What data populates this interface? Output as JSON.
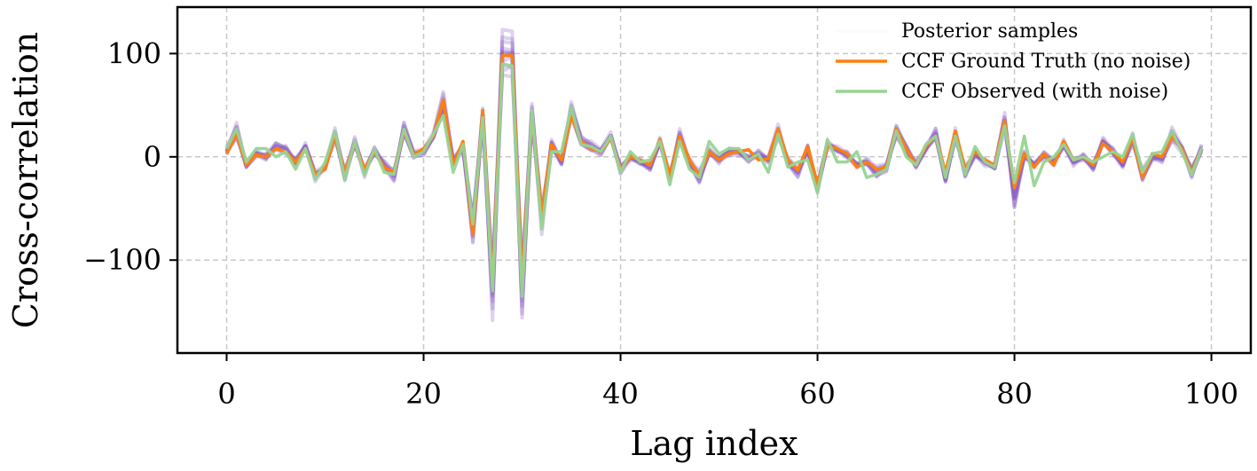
{
  "chart_data": {
    "type": "line",
    "title": "",
    "xlabel": "Lag index",
    "ylabel": "Cross-correlation",
    "xlim": [
      -5,
      104
    ],
    "ylim": [
      -190,
      145
    ],
    "xticks": [
      0,
      20,
      40,
      60,
      80,
      100
    ],
    "xtick_labels": [
      "0",
      "20",
      "40",
      "60",
      "80",
      "100"
    ],
    "yticks": [
      100,
      0,
      -100
    ],
    "ytick_labels": [
      "100",
      "0",
      "−100"
    ],
    "grid": true,
    "legend_position": "top-right",
    "legend": [
      {
        "label": "Posterior samples",
        "color": "#8a5cc4",
        "kind": "samples"
      },
      {
        "label": "CCF Ground Truth (no noise)",
        "color": "#ff7f0e",
        "kind": "line"
      },
      {
        "label": "CCF Observed (with noise)",
        "color": "#98d493",
        "kind": "line"
      }
    ],
    "x_start": 0,
    "series": [
      {
        "name": "Posterior samples",
        "color": "#8a5cc4",
        "values": [
          5,
          25,
          -8,
          3,
          0,
          10,
          7,
          -5,
          10,
          -18,
          -10,
          22,
          -18,
          14,
          -14,
          6,
          -8,
          -18,
          27,
          2,
          5,
          20,
          52,
          -5,
          10,
          -70,
          40,
          -130,
          100,
          100,
          -130,
          42,
          -60,
          12,
          -5,
          45,
          15,
          10,
          5,
          20,
          -12,
          0,
          -5,
          -10,
          15,
          -20,
          20,
          -5,
          -20,
          5,
          -3,
          5,
          5,
          -2,
          3,
          -3,
          25,
          -5,
          -15,
          8,
          -30,
          12,
          7,
          2,
          -8,
          -5,
          -15,
          -10,
          25,
          8,
          -8,
          8,
          22,
          -22,
          22,
          -15,
          3,
          -5,
          -10,
          35,
          -40,
          2,
          -8,
          2,
          -5,
          12,
          -5,
          0,
          -10,
          15,
          5,
          -8,
          18,
          -18,
          0,
          -2,
          22,
          8,
          -15,
          8
        ]
      },
      {
        "name": "CCF Ground Truth (no noise)",
        "color": "#ff7f0e",
        "values": [
          3,
          22,
          -8,
          2,
          0,
          8,
          5,
          -5,
          8,
          -17,
          -12,
          20,
          -15,
          13,
          -12,
          5,
          -10,
          -15,
          25,
          2,
          8,
          20,
          55,
          -8,
          15,
          -75,
          45,
          -125,
          98,
          98,
          -120,
          40,
          -55,
          12,
          -3,
          40,
          15,
          8,
          5,
          18,
          -12,
          0,
          -3,
          -8,
          17,
          -18,
          20,
          -3,
          -18,
          5,
          -3,
          3,
          5,
          7,
          -3,
          -2,
          27,
          -3,
          -13,
          10,
          -27,
          10,
          8,
          3,
          -10,
          -5,
          -12,
          -10,
          27,
          8,
          -8,
          10,
          20,
          -15,
          25,
          -12,
          5,
          -3,
          -8,
          35,
          -30,
          3,
          -10,
          3,
          -8,
          15,
          -3,
          0,
          -8,
          13,
          5,
          -5,
          18,
          -20,
          3,
          0,
          20,
          8,
          -15,
          8
        ]
      },
      {
        "name": "CCF Observed (with noise)",
        "color": "#98d493",
        "values": [
          8,
          27,
          -5,
          8,
          8,
          0,
          5,
          -12,
          8,
          -22,
          -5,
          25,
          -22,
          15,
          -18,
          8,
          -15,
          -17,
          27,
          0,
          5,
          22,
          40,
          -15,
          12,
          -65,
          38,
          -130,
          90,
          88,
          -135,
          45,
          -70,
          5,
          5,
          48,
          12,
          10,
          5,
          20,
          -15,
          5,
          -5,
          -3,
          15,
          -27,
          15,
          -12,
          -20,
          15,
          3,
          8,
          8,
          -3,
          3,
          -15,
          22,
          -10,
          -5,
          -3,
          -35,
          17,
          -5,
          -5,
          5,
          -20,
          -17,
          -12,
          25,
          0,
          -8,
          12,
          20,
          -20,
          20,
          -17,
          10,
          -5,
          -10,
          30,
          -25,
          20,
          -28,
          -5,
          0,
          12,
          -3,
          0,
          -5,
          0,
          5,
          0,
          22,
          -15,
          3,
          5,
          25,
          5,
          -17,
          8
        ]
      }
    ]
  }
}
